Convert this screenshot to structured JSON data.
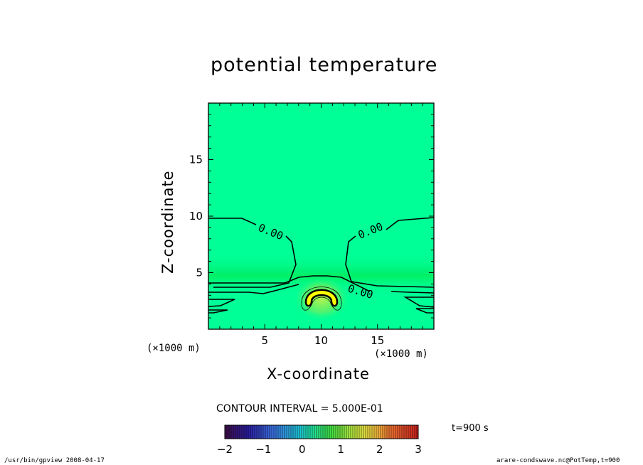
{
  "title": "potential temperature",
  "chart_data": {
    "type": "heatmap",
    "title": "potential temperature",
    "xlabel": "X-coordinate",
    "ylabel": "Z-coordinate",
    "x_unit": "(×1000 m)",
    "y_unit": "(×1000 m)",
    "xlim": [
      0,
      20
    ],
    "ylim": [
      0,
      20
    ],
    "x_ticks": [
      5,
      10,
      15
    ],
    "y_ticks": [
      5,
      10,
      15
    ],
    "contour_interval_text": "CONTOUR INTERVAL = 5.000E-01",
    "contour_labels": [
      {
        "text": "0.00",
        "x": 5.8,
        "y": 8.6
      },
      {
        "text": "0.00",
        "x": 14.4,
        "y": 8.6
      },
      {
        "text": "0.00",
        "x": 13.5,
        "y": 3.5
      }
    ],
    "colorbar": {
      "ticks": [
        "-2",
        "-1",
        "0",
        "1",
        "2",
        "3"
      ],
      "range": [
        -2,
        3
      ]
    },
    "colors": {
      "background_field": "#00ff96",
      "anomaly_peak": "#ffff00"
    }
  },
  "time_label": "t=900 s",
  "footer_left": "/usr/bin/gpview   2008-04-17",
  "footer_right": "arare-condswave.nc@PotTemp,t=900"
}
